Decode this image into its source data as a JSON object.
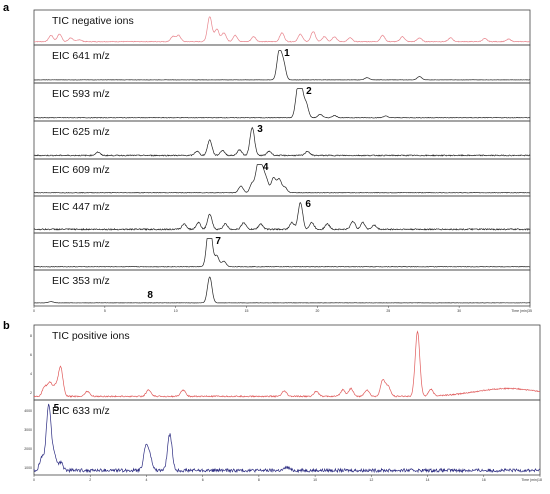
{
  "colors": {
    "negative_tic": "#e8848c",
    "black_trace": "#222222",
    "positive_tic": "#e05a5a",
    "blue_trace": "#2a2a80"
  },
  "chart_data": [
    {
      "panel": "a",
      "type": "line",
      "xlim": [
        0,
        35
      ],
      "x_axis_title": "Time (min)",
      "x_ticks": [
        "0",
        "5",
        "10",
        "15",
        "20",
        "25",
        "30",
        "35"
      ],
      "traces": [
        {
          "label": "TIC negative ions",
          "color": "negative_tic",
          "peak_number": "",
          "peaks": [
            [
              1.2,
              0.25
            ],
            [
              1.8,
              0.3
            ],
            [
              2.6,
              0.15
            ],
            [
              3.2,
              0.08
            ],
            [
              9.8,
              0.2
            ],
            [
              10.2,
              0.25
            ],
            [
              12.4,
              1.0
            ],
            [
              12.9,
              0.5
            ],
            [
              13.4,
              0.35
            ],
            [
              14.2,
              0.25
            ],
            [
              15.5,
              0.2
            ],
            [
              17.5,
              0.35
            ],
            [
              18.8,
              0.3
            ],
            [
              19.7,
              0.4
            ],
            [
              20.5,
              0.2
            ],
            [
              21.2,
              0.2
            ],
            [
              22.3,
              0.15
            ],
            [
              24.6,
              0.25
            ],
            [
              26,
              0.2
            ],
            [
              27.2,
              0.15
            ],
            [
              29.4,
              0.15
            ],
            [
              31.8,
              0.12
            ],
            [
              33.5,
              0.1
            ]
          ],
          "noise": 0.03
        },
        {
          "label": "EIC 641 m/z",
          "color": "black_trace",
          "peak_number": "1",
          "peaks": [
            [
              17.3,
              1.0
            ],
            [
              17.6,
              0.6
            ],
            [
              23.5,
              0.08
            ],
            [
              27.2,
              0.12
            ]
          ],
          "noise": 0.01
        },
        {
          "label": "EIC 593 m/z",
          "color": "black_trace",
          "peak_number": "2",
          "peaks": [
            [
              18.6,
              0.9
            ],
            [
              18.85,
              1.0
            ],
            [
              19.2,
              0.5
            ],
            [
              20.2,
              0.12
            ],
            [
              21.2,
              0.08
            ],
            [
              24.8,
              0.06
            ]
          ],
          "noise": 0.02
        },
        {
          "label": "EIC 625 m/z",
          "color": "black_trace",
          "peak_number": "3",
          "peaks": [
            [
              4.5,
              0.12
            ],
            [
              11.5,
              0.15
            ],
            [
              12.4,
              0.55
            ],
            [
              13.3,
              0.18
            ],
            [
              14.5,
              0.2
            ],
            [
              15.4,
              1.0
            ],
            [
              16.6,
              0.15
            ],
            [
              19.3,
              0.15
            ]
          ],
          "noise": 0.04
        },
        {
          "label": "EIC 609 m/z",
          "color": "black_trace",
          "peak_number": "4",
          "peaks": [
            [
              14.6,
              0.25
            ],
            [
              15.4,
              0.35
            ],
            [
              15.8,
              1.0
            ],
            [
              16.1,
              0.8
            ],
            [
              16.4,
              0.45
            ],
            [
              16.9,
              0.55
            ],
            [
              17.3,
              0.5
            ],
            [
              17.7,
              0.2
            ]
          ],
          "noise": 0.02
        },
        {
          "label": "EIC 447 m/z",
          "color": "black_trace",
          "peak_number": "6",
          "peaks": [
            [
              10.6,
              0.2
            ],
            [
              11.6,
              0.25
            ],
            [
              12.4,
              0.55
            ],
            [
              13.5,
              0.2
            ],
            [
              14.8,
              0.25
            ],
            [
              16.0,
              0.2
            ],
            [
              18.2,
              0.25
            ],
            [
              18.8,
              1.0
            ],
            [
              19.6,
              0.25
            ],
            [
              20.7,
              0.2
            ],
            [
              22.5,
              0.3
            ],
            [
              23.2,
              0.25
            ],
            [
              24,
              0.15
            ]
          ],
          "noise": 0.05
        },
        {
          "label": "EIC 515 m/z",
          "color": "black_trace",
          "peak_number": "7",
          "peaks": [
            [
              12.3,
              0.9
            ],
            [
              12.45,
              1.0
            ],
            [
              12.9,
              0.4
            ],
            [
              13.4,
              0.2
            ]
          ],
          "noise": 0.02
        },
        {
          "label": "EIC 353 m/z",
          "color": "black_trace",
          "peak_number": "8",
          "peaks": [
            [
              1.2,
              0.05
            ],
            [
              12.4,
              1.0
            ]
          ],
          "noise": 0.01
        }
      ]
    },
    {
      "panel": "b",
      "type": "line",
      "xlim": [
        0,
        19
      ],
      "x_axis_title": "Time (min)",
      "x_ticks": [
        "0",
        "2",
        "4",
        "6",
        "8",
        "10",
        "12",
        "14",
        "16",
        "18"
      ],
      "traces": [
        {
          "label": "TIC positive ions",
          "color": "positive_tic",
          "peak_number": "",
          "y_ticks": [
            "8",
            "6",
            "4",
            "2"
          ],
          "peaks": [
            [
              0.4,
              0.15
            ],
            [
              0.6,
              0.2
            ],
            [
              0.8,
              0.15
            ],
            [
              1.0,
              0.45
            ],
            [
              2.0,
              0.08
            ],
            [
              4.3,
              0.1
            ],
            [
              5.6,
              0.1
            ],
            [
              9.4,
              0.08
            ],
            [
              10.6,
              0.08
            ],
            [
              11.6,
              0.1
            ],
            [
              11.9,
              0.12
            ],
            [
              12.5,
              0.1
            ],
            [
              13.1,
              0.25
            ],
            [
              13.3,
              0.15
            ],
            [
              14.4,
              1.0
            ],
            [
              14.9,
              0.1
            ]
          ],
          "broad": [
            17.8,
            1.2,
            0.12
          ],
          "noise": 0.02
        },
        {
          "label": "EIC 633 m/z",
          "color": "blue_trace",
          "peak_number": "5",
          "y_ticks": [
            "4000",
            "3000",
            "2000",
            "1000"
          ],
          "peaks": [
            [
              0.3,
              0.2
            ],
            [
              0.55,
              1.0
            ],
            [
              0.75,
              0.25
            ],
            [
              1.0,
              0.12
            ],
            [
              4.2,
              0.35
            ],
            [
              4.35,
              0.2
            ],
            [
              5.1,
              0.55
            ],
            [
              9.5,
              0.05
            ]
          ],
          "noise": 0.05
        }
      ]
    }
  ]
}
